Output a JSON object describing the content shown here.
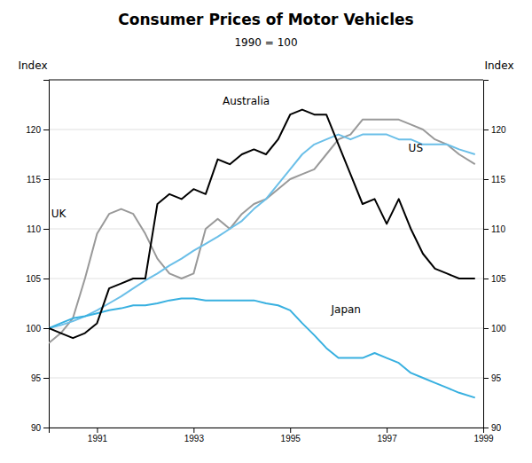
{
  "chart_data": {
    "type": "line",
    "title": "Consumer Prices of Motor Vehicles",
    "subtitle": "1990 = 100",
    "ylabel": "Index",
    "y2label": "Index",
    "xlim": [
      1990.0,
      1999.0
    ],
    "xticks": [
      1991,
      1993,
      1995,
      1997,
      1999
    ],
    "ylim": [
      90,
      125
    ],
    "yticks": [
      90,
      95,
      100,
      105,
      110,
      115,
      120
    ],
    "y2lim": [
      90,
      125
    ],
    "y2ticks": [
      90,
      95,
      100,
      105,
      110,
      115,
      120
    ],
    "grid": true,
    "x": [
      1990.0,
      1990.25,
      1990.5,
      1990.75,
      1991.0,
      1991.25,
      1991.5,
      1991.75,
      1992.0,
      1992.25,
      1992.5,
      1992.75,
      1993.0,
      1993.25,
      1993.5,
      1993.75,
      1994.0,
      1994.25,
      1994.5,
      1994.75,
      1995.0,
      1995.25,
      1995.5,
      1995.75,
      1996.0,
      1996.25,
      1996.5,
      1996.75,
      1997.0,
      1997.25,
      1997.5,
      1997.75,
      1998.0,
      1998.25,
      1998.5,
      1998.83
    ],
    "series": [
      {
        "color": "#000000",
        "values": [
          100.0,
          99.5,
          99.0,
          99.5,
          100.5,
          104.0,
          104.5,
          105.0,
          105.0,
          112.5,
          113.5,
          113.0,
          114.0,
          113.5,
          117.0,
          116.5,
          117.5,
          118.0,
          117.5,
          119.0,
          121.5,
          122.0,
          121.5,
          121.5,
          118.5,
          115.5,
          112.5,
          113.0,
          110.5,
          113.0,
          110.0,
          107.5,
          106.0,
          105.5,
          105.0,
          105.0
        ]
      },
      {
        "color": "#999999",
        "values": [
          98.5,
          99.5,
          101.0,
          105.0,
          109.5,
          111.5,
          112.0,
          111.5,
          109.5,
          107.0,
          105.5,
          105.0,
          105.5,
          110.0,
          111.0,
          110.0,
          111.5,
          112.5,
          113.0,
          114.0,
          115.0,
          115.5,
          116.0,
          117.5,
          119.0,
          119.5,
          121.0,
          121.0,
          121.0,
          121.0,
          120.5,
          120.0,
          119.0,
          118.5,
          117.5,
          116.5
        ]
      },
      {
        "color": "#6BBFE8",
        "values": [
          100.0,
          100.3,
          100.7,
          101.2,
          101.8,
          102.5,
          103.2,
          104.0,
          104.8,
          105.5,
          106.3,
          107.0,
          107.8,
          108.5,
          109.2,
          110.0,
          110.8,
          112.0,
          113.0,
          114.5,
          116.0,
          117.5,
          118.5,
          119.0,
          119.5,
          119.0,
          119.5,
          119.5,
          119.5,
          119.0,
          119.0,
          118.5,
          118.5,
          118.5,
          118.0,
          117.5
        ]
      },
      {
        "color": "#38B0E0",
        "values": [
          100.0,
          100.5,
          101.0,
          101.2,
          101.5,
          101.8,
          102.0,
          102.3,
          102.3,
          102.5,
          102.8,
          103.0,
          103.0,
          102.8,
          102.8,
          102.8,
          102.8,
          102.8,
          102.5,
          102.3,
          101.8,
          100.5,
          99.3,
          98.0,
          97.0,
          97.0,
          97.0,
          97.5,
          97.0,
          96.5,
          95.5,
          95.0,
          94.5,
          94.0,
          93.5,
          93.0
        ]
      }
    ],
    "annotations": [
      {
        "x": 1993.6,
        "y": 122.5,
        "text": "Australia"
      },
      {
        "x": 1990.05,
        "y": 111.2,
        "text": "UK"
      },
      {
        "x": 1997.45,
        "y": 117.8,
        "text": "US"
      },
      {
        "x": 1995.85,
        "y": 101.5,
        "text": "Japan"
      }
    ]
  }
}
